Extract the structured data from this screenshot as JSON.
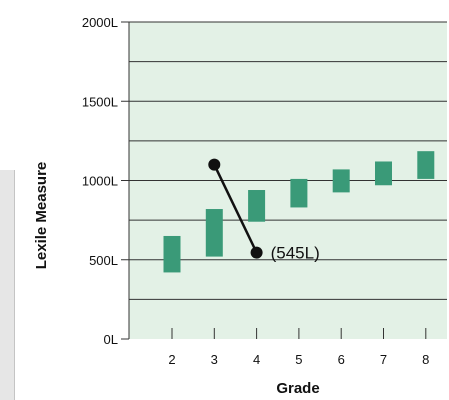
{
  "chart_data": {
    "type": "bar",
    "subtype": "floating-range",
    "title": "",
    "xlabel": "Grade",
    "ylabel": "Lexile Measure",
    "ylim": [
      0,
      2000
    ],
    "yticks": [
      "0L",
      "500L",
      "1000L",
      "1500L",
      "2000L"
    ],
    "ytick_values": [
      0,
      500,
      1000,
      1500,
      2000
    ],
    "grid": true,
    "categories": [
      "2",
      "3",
      "4",
      "5",
      "6",
      "7",
      "8"
    ],
    "ranges": [
      {
        "grade": "2",
        "low": 420,
        "high": 650
      },
      {
        "grade": "3",
        "low": 520,
        "high": 820
      },
      {
        "grade": "4",
        "low": 740,
        "high": 940
      },
      {
        "grade": "5",
        "low": 830,
        "high": 1010
      },
      {
        "grade": "6",
        "low": 925,
        "high": 1070
      },
      {
        "grade": "7",
        "low": 970,
        "high": 1120
      },
      {
        "grade": "8",
        "low": 1010,
        "high": 1185
      }
    ],
    "trend_line": {
      "from": {
        "grade": 3,
        "value": 1100
      },
      "to": {
        "grade": 4,
        "value": 545
      }
    },
    "annotation": "(545L)",
    "colors": {
      "plot_bg": "#e3f1e6",
      "bar": "#3a9a78",
      "line": "#111111",
      "grid": "#333333"
    }
  }
}
